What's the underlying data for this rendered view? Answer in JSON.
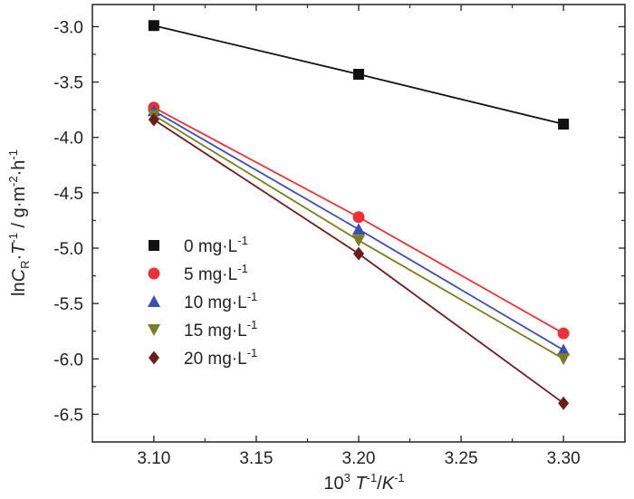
{
  "chart_data": {
    "type": "scatter",
    "xlabel": {
      "base": "10",
      "base_sup": "3",
      "var": "T",
      "var_sup": "-1",
      "sep": "/",
      "unit": "K",
      "unit_sup": "-1"
    },
    "ylabel": {
      "pre": "ln",
      "var": "C",
      "var_sub": "R",
      "dot1": "·",
      "var2": "T",
      "var2_sup": "-1",
      "sep": " / g·m",
      "m_sup": "-2",
      "dot2": "·h",
      "h_sup": "-1"
    },
    "xlim": [
      3.07,
      3.33
    ],
    "ylim": [
      -6.75,
      -2.8
    ],
    "x_ticks": [
      "3.10",
      "3.15",
      "3.20",
      "3.25",
      "3.30"
    ],
    "x_tick_values": [
      3.1,
      3.15,
      3.2,
      3.25,
      3.3
    ],
    "y_ticks": [
      "-3.0",
      "-3.5",
      "-4.0",
      "-4.5",
      "-5.0",
      "-5.5",
      "-6.0",
      "-6.5"
    ],
    "y_tick_values": [
      -3.0,
      -3.5,
      -4.0,
      -4.5,
      -5.0,
      -5.5,
      -6.0,
      -6.5
    ],
    "x": [
      3.1,
      3.2,
      3.3
    ],
    "legend_position": "left-center",
    "series": [
      {
        "name": "0 mg·L",
        "name_sup": "-1",
        "marker": "square",
        "color": "#111111",
        "line_color": "#111111",
        "values": [
          -2.99,
          -3.43,
          -3.88
        ]
      },
      {
        "name": "5 mg·L",
        "name_sup": "-1",
        "marker": "circle",
        "color": "#e8323a",
        "line_color": "#e8323a",
        "values": [
          -3.73,
          -4.72,
          -5.77
        ]
      },
      {
        "name": "10 mg·L",
        "name_sup": "-1",
        "marker": "triangle-up",
        "color": "#3a4fb0",
        "line_color": "#3a4fb0",
        "values": [
          -3.76,
          -4.83,
          -5.92
        ]
      },
      {
        "name": "15 mg·L",
        "name_sup": "-1",
        "marker": "triangle-down",
        "color": "#7b7d24",
        "line_color": "#7b7d24",
        "values": [
          -3.8,
          -4.93,
          -6.0
        ]
      },
      {
        "name": "20 mg·L",
        "name_sup": "-1",
        "marker": "diamond",
        "color": "#6a1e1c",
        "line_color": "#6a1e1c",
        "values": [
          -3.84,
          -5.05,
          -6.4
        ]
      }
    ]
  }
}
